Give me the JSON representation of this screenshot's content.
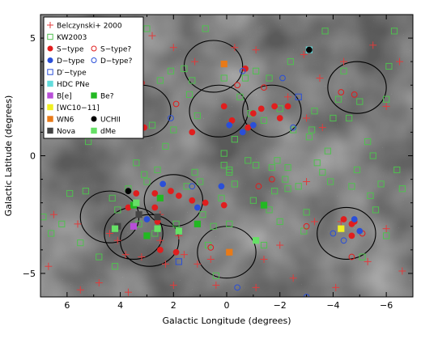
{
  "chart_data": {
    "type": "scatter",
    "xlabel": "Galactic Longitude (degrees)",
    "ylabel": "Galactic Latitude (degrees)",
    "xlim": [
      7,
      -7
    ],
    "ylim": [
      -6,
      6
    ],
    "x_ticks": [
      6,
      4,
      2,
      0,
      -2,
      -4,
      -6
    ],
    "y_ticks": [
      5,
      0,
      -5
    ],
    "x_tick_labels": [
      "6",
      "4",
      "2",
      "0",
      "−2",
      "−4",
      "−6"
    ],
    "y_tick_labels": [
      "5",
      "0",
      "−5"
    ],
    "background": "grayscale sky image",
    "legend_position": "top-left",
    "legend": [
      {
        "label": "Belczynski+ 2000",
        "marker": "plus",
        "color": "#e03c3c",
        "filled": false
      },
      {
        "label": "KW2003",
        "marker": "square",
        "color": "#4fc04f",
        "filled": false
      },
      {
        "label": "S−type",
        "marker": "circle",
        "color": "#e01e1e",
        "filled": true
      },
      {
        "label": "S−type?",
        "marker": "circle",
        "color": "#e01e1e",
        "filled": false
      },
      {
        "label": "D−type",
        "marker": "circle",
        "color": "#2a4fd8",
        "filled": true
      },
      {
        "label": "D−type?",
        "marker": "circle",
        "color": "#2a4fd8",
        "filled": false
      },
      {
        "label": "D′−type",
        "marker": "square",
        "color": "#2a4fd8",
        "filled": false
      },
      {
        "label": "HDC PNe",
        "marker": "square",
        "color": "#62dcdc",
        "filled": true
      },
      {
        "label": "B[e]",
        "marker": "square",
        "color": "#b84fd8",
        "filled": true
      },
      {
        "label": "Be?",
        "marker": "square",
        "color": "#22b822",
        "filled": true
      },
      {
        "label": "[WC10−11]",
        "marker": "square",
        "color": "#f0f020",
        "filled": true
      },
      {
        "label": "WN6",
        "marker": "square",
        "color": "#e87a18",
        "filled": true
      },
      {
        "label": "UCHII",
        "marker": "circle",
        "color": "#000000",
        "filled": true
      },
      {
        "label": "Nova",
        "marker": "square",
        "color": "#444444",
        "filled": true
      },
      {
        "label": "dMe",
        "marker": "square",
        "color": "#66e066",
        "filled": true
      }
    ],
    "fields": [
      {
        "l": 0.5,
        "b": 3.8,
        "r": 1.1
      },
      {
        "l": 0.3,
        "b": 1.9,
        "r": 1.1
      },
      {
        "l": -1.7,
        "b": 1.9,
        "r": 1.1
      },
      {
        "l": 3.2,
        "b": 1.9,
        "r": 1.1
      },
      {
        "l": -4.9,
        "b": 2.9,
        "r": 1.1
      },
      {
        "l": 2.0,
        "b": -1.9,
        "r": 1.1
      },
      {
        "l": 4.4,
        "b": -2.6,
        "r": 1.1
      },
      {
        "l": 3.5,
        "b": -3.3,
        "r": 1.1
      },
      {
        "l": 2.9,
        "b": -3.6,
        "r": 1.1
      },
      {
        "l": 0.0,
        "b": -4.1,
        "r": 1.1
      },
      {
        "l": -4.5,
        "b": -3.3,
        "r": 1.1
      }
    ],
    "series": [
      {
        "name": "Belczynski+ 2000",
        "marker": "plus",
        "color": "#e03c3c",
        "filled": false,
        "points": [
          [
            6.5,
            -2.5
          ],
          [
            5.6,
            -2.9
          ],
          [
            4.4,
            -3.3
          ],
          [
            4.1,
            -3.6
          ],
          [
            3.8,
            -4.2
          ],
          [
            3.2,
            -4.3
          ],
          [
            2.5,
            -3.6
          ],
          [
            2.3,
            -4.6
          ],
          [
            1.6,
            -4.2
          ],
          [
            1.1,
            -4.6
          ],
          [
            0.6,
            -4.4
          ],
          [
            -1.4,
            -4.4
          ],
          [
            -2.0,
            -3.8
          ],
          [
            -2.5,
            -5.2
          ],
          [
            -3.3,
            -2.8
          ],
          [
            -4.1,
            -5.6
          ],
          [
            -5.3,
            -4.5
          ],
          [
            -6.0,
            -3.1
          ],
          [
            -6.6,
            -4.9
          ],
          [
            6.7,
            -4.7
          ],
          [
            5.5,
            -5.7
          ],
          [
            4.8,
            -5.4
          ],
          [
            3.7,
            -5.8
          ],
          [
            2.0,
            -5.5
          ],
          [
            0.4,
            -5.5
          ],
          [
            -1.1,
            -5.6
          ],
          [
            2.5,
            -2.5
          ],
          [
            1.8,
            -3.4
          ],
          [
            2.8,
            5.1
          ],
          [
            2.0,
            4.6
          ],
          [
            1.2,
            4.0
          ],
          [
            -0.3,
            4.6
          ],
          [
            -1.1,
            4.5
          ],
          [
            -2.9,
            4.3
          ],
          [
            -3.5,
            3.3
          ],
          [
            -4.4,
            4.0
          ],
          [
            -5.5,
            4.7
          ],
          [
            -6.5,
            4.0
          ],
          [
            -2.3,
            2.5
          ],
          [
            -3.0,
            1.6
          ],
          [
            -3.6,
            1.2
          ],
          [
            -6.0,
            2.1
          ],
          [
            -3.0,
            -1.1
          ],
          [
            -4.3,
            -2.8
          ]
        ]
      },
      {
        "name": "KW2003",
        "marker": "square",
        "color": "#4fc04f",
        "filled": false,
        "points": [
          [
            6.2,
            -2.9
          ],
          [
            5.9,
            -1.6
          ],
          [
            5.3,
            -1.5
          ],
          [
            5.2,
            0.6
          ],
          [
            4.5,
            2.9
          ],
          [
            4.4,
            0.9
          ],
          [
            4.3,
            -1.8
          ],
          [
            4.1,
            -2.3
          ],
          [
            3.7,
            -1.4
          ],
          [
            3.4,
            -0.3
          ],
          [
            3.1,
            -0.8
          ],
          [
            2.6,
            -0.6
          ],
          [
            2.5,
            3.2
          ],
          [
            2.3,
            0.4
          ],
          [
            2.0,
            1.1
          ],
          [
            1.6,
            3.7
          ],
          [
            1.4,
            2.6
          ],
          [
            1.2,
            -0.7
          ],
          [
            1.0,
            -1.1
          ],
          [
            0.9,
            -2.5
          ],
          [
            0.7,
            -3.8
          ],
          [
            0.5,
            -3.0
          ],
          [
            0.2,
            -1.8
          ],
          [
            0.1,
            0.1
          ],
          [
            0.1,
            -0.4
          ],
          [
            -0.1,
            -0.6
          ],
          [
            -0.3,
            0.7
          ],
          [
            -0.3,
            -1.2
          ],
          [
            -0.5,
            2.5
          ],
          [
            -0.7,
            3.3
          ],
          [
            -0.9,
            1.8
          ],
          [
            -1.0,
            -1.9
          ],
          [
            -1.1,
            -0.4
          ],
          [
            -1.4,
            1.5
          ],
          [
            -1.6,
            3.3
          ],
          [
            -1.7,
            -0.5
          ],
          [
            -1.9,
            -0.2
          ],
          [
            -2.0,
            -2.8
          ],
          [
            -2.2,
            -1.0
          ],
          [
            -2.4,
            4.0
          ],
          [
            -2.5,
            1.1
          ],
          [
            -2.7,
            -1.3
          ],
          [
            -2.9,
            -3.2
          ],
          [
            -3.0,
            -2.4
          ],
          [
            -3.1,
            0.8
          ],
          [
            -3.3,
            1.9
          ],
          [
            -3.4,
            -0.3
          ],
          [
            -3.6,
            -0.7
          ],
          [
            -3.8,
            0.2
          ],
          [
            -3.9,
            -1.1
          ],
          [
            -4.0,
            1.6
          ],
          [
            -4.2,
            2.4
          ],
          [
            -4.4,
            3.6
          ],
          [
            -4.6,
            1.6
          ],
          [
            -4.7,
            -1.3
          ],
          [
            -4.9,
            -0.6
          ],
          [
            -5.0,
            2.3
          ],
          [
            -5.3,
            0.6
          ],
          [
            -5.5,
            0.0
          ],
          [
            -5.6,
            -2.3
          ],
          [
            -5.8,
            -1.2
          ],
          [
            -6.0,
            2.4
          ],
          [
            -6.1,
            3.8
          ],
          [
            -6.3,
            5.3
          ],
          [
            -6.4,
            -0.6
          ],
          [
            -6.6,
            -1.4
          ],
          [
            3.0,
            5.4
          ],
          [
            2.1,
            3.6
          ],
          [
            1.3,
            3.2
          ],
          [
            0.8,
            5.4
          ],
          [
            0.1,
            3.3
          ],
          [
            -1.1,
            3.6
          ],
          [
            6.9,
            -2.6
          ],
          [
            6.6,
            -3.3
          ],
          [
            5.5,
            -3.7
          ],
          [
            4.8,
            -4.3
          ],
          [
            4.2,
            -4.7
          ],
          [
            3.0,
            -1.1
          ],
          [
            3.3,
            -2.9
          ],
          [
            2.7,
            -3.3
          ],
          [
            1.9,
            -2.9
          ],
          [
            -0.1,
            -2.9
          ],
          [
            -1.6,
            -2.3
          ],
          [
            -1.8,
            -1.5
          ],
          [
            -0.8,
            -0.2
          ],
          [
            -5.1,
            -4.3
          ],
          [
            -6.0,
            -3.4
          ],
          [
            -5.4,
            -1.7
          ],
          [
            0.4,
            -5.1
          ],
          [
            -2.3,
            -1.4
          ],
          [
            -2.3,
            -0.5
          ],
          [
            -3.2,
            1.1
          ],
          [
            -2.0,
            2.0
          ],
          [
            -0.1,
            -0.7
          ],
          [
            -3.7,
            5.3
          ],
          [
            2.8,
            1.3
          ],
          [
            1.1,
            1.7
          ],
          [
            1.5,
            -1.3
          ],
          [
            -1.4,
            -3.8
          ]
        ]
      },
      {
        "name": "S−type",
        "marker": "circle",
        "color": "#e01e1e",
        "filled": true,
        "points": [
          [
            5.9,
            2.7
          ],
          [
            5.4,
            2.1
          ],
          [
            4.5,
            1.8
          ],
          [
            4.3,
            1.4
          ],
          [
            3.3,
            1.6
          ],
          [
            3.1,
            1.2
          ],
          [
            2.7,
            -1.6
          ],
          [
            2.1,
            -1.5
          ],
          [
            1.8,
            -1.7
          ],
          [
            1.3,
            -1.9
          ],
          [
            0.8,
            -2.0
          ],
          [
            0.1,
            -2.1
          ],
          [
            -1.0,
            1.8
          ],
          [
            -1.3,
            2.0
          ],
          [
            -2.0,
            1.6
          ],
          [
            -2.3,
            2.1
          ],
          [
            -0.7,
            3.7
          ],
          [
            3.4,
            -1.6
          ],
          [
            2.7,
            -2.2
          ],
          [
            3.7,
            -2.2
          ],
          [
            -0.8,
            1.2
          ],
          [
            2.6,
            -2.8
          ],
          [
            1.9,
            -4.1
          ],
          [
            2.5,
            -4.0
          ],
          [
            -4.4,
            -2.7
          ],
          [
            -4.7,
            -2.9
          ],
          [
            -4.7,
            -3.4
          ],
          [
            -4.8,
            -2.8
          ],
          [
            -1.8,
            2.1
          ],
          [
            0.1,
            2.1
          ],
          [
            1.3,
            1.0
          ],
          [
            -0.2,
            1.5
          ]
        ]
      },
      {
        "name": "S−type?",
        "marker": "circle",
        "color": "#e01e1e",
        "filled": false,
        "points": [
          [
            3.2,
            3.1
          ],
          [
            1.9,
            2.2
          ],
          [
            -0.4,
            3.0
          ],
          [
            -1.4,
            2.9
          ],
          [
            -4.3,
            2.7
          ],
          [
            -4.8,
            2.6
          ],
          [
            -1.7,
            -1.0
          ],
          [
            -1.2,
            -1.3
          ],
          [
            -4.7,
            -4.3
          ],
          [
            -3.0,
            -3.0
          ],
          [
            0.6,
            -3.9
          ],
          [
            -5.1,
            -3.3
          ]
        ]
      },
      {
        "name": "D−type",
        "marker": "circle",
        "color": "#2a4fd8",
        "filled": true,
        "points": [
          [
            1.1,
            -2.2
          ],
          [
            2.4,
            -1.2
          ],
          [
            0.2,
            -1.3
          ],
          [
            -0.1,
            1.3
          ],
          [
            -1.0,
            1.3
          ],
          [
            -0.6,
            1.0
          ],
          [
            3.0,
            -2.7
          ],
          [
            -5.0,
            -3.2
          ],
          [
            -4.8,
            -2.7
          ]
        ]
      },
      {
        "name": "D−type?",
        "marker": "circle",
        "color": "#2a4fd8",
        "filled": false,
        "points": [
          [
            1.3,
            -1.3
          ],
          [
            2.1,
            1.6
          ],
          [
            -0.6,
            3.6
          ],
          [
            -2.1,
            3.3
          ],
          [
            -4.0,
            -3.3
          ],
          [
            -4.4,
            -3.6
          ],
          [
            -3.0,
            -6.0
          ],
          [
            -0.4,
            -5.6
          ],
          [
            -2.5,
            1.2
          ]
        ]
      },
      {
        "name": "D′−type",
        "marker": "square",
        "color": "#2a4fd8",
        "filled": false,
        "points": [
          [
            1.8,
            -4.5
          ],
          [
            -2.7,
            2.5
          ]
        ]
      },
      {
        "name": "HDC PNe",
        "marker": "square",
        "color": "#62dcdc",
        "filled": true,
        "points": [
          [
            -3.1,
            4.5
          ]
        ]
      },
      {
        "name": "B[e]",
        "marker": "square",
        "color": "#b84fd8",
        "filled": true,
        "points": [
          [
            3.5,
            -3.0
          ]
        ]
      },
      {
        "name": "Be?",
        "marker": "square",
        "color": "#22b822",
        "filled": true,
        "points": [
          [
            2.5,
            -1.8
          ],
          [
            1.1,
            -2.9
          ],
          [
            -1.4,
            -2.1
          ],
          [
            3.0,
            -3.4
          ],
          [
            3.5,
            -2.1
          ]
        ]
      },
      {
        "name": "[WC10−11]",
        "marker": "square",
        "color": "#f0f020",
        "filled": true,
        "points": [
          [
            -4.3,
            -3.1
          ]
        ]
      },
      {
        "name": "WN6",
        "marker": "square",
        "color": "#e87a18",
        "filled": true,
        "points": [
          [
            0.1,
            3.9
          ],
          [
            -0.1,
            -4.1
          ]
        ]
      },
      {
        "name": "UCHII",
        "marker": "circle",
        "color": "#000000",
        "filled": true,
        "points": [
          [
            3.7,
            -1.5
          ],
          [
            -3.1,
            4.5
          ]
        ]
      },
      {
        "name": "Nova",
        "marker": "square",
        "color": "#444444",
        "filled": true,
        "points": [
          [
            3.3,
            -2.5
          ],
          [
            2.6,
            -2.6
          ],
          [
            4.1,
            -3.0
          ]
        ]
      },
      {
        "name": "dMe",
        "marker": "square",
        "color": "#66e066",
        "filled": true,
        "points": [
          [
            4.2,
            -3.1
          ],
          [
            3.4,
            -2.0
          ],
          [
            1.8,
            -3.2
          ],
          [
            2.6,
            -3.1
          ],
          [
            -1.1,
            -3.6
          ]
        ]
      }
    ]
  }
}
